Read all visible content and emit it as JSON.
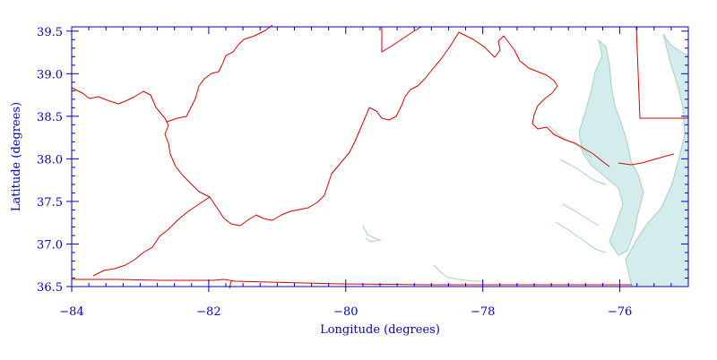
{
  "map": {
    "xlabel": "Longitude (degrees)",
    "ylabel": "Latitude (degrees)",
    "xlim": [
      -84,
      -75
    ],
    "ylim": [
      36.5,
      39.55
    ],
    "x_ticks": [
      {
        "value": -84,
        "label": "−84"
      },
      {
        "value": -82,
        "label": "−82"
      },
      {
        "value": -80,
        "label": "−80"
      },
      {
        "value": -78,
        "label": "−78"
      },
      {
        "value": -76,
        "label": "−76"
      }
    ],
    "y_ticks": [
      {
        "value": 36.5,
        "label": "36.5"
      },
      {
        "value": 37.0,
        "label": "37.0"
      },
      {
        "value": 37.5,
        "label": "37.5"
      },
      {
        "value": 38.0,
        "label": "38.0"
      },
      {
        "value": 38.5,
        "label": "38.5"
      },
      {
        "value": 39.0,
        "label": "39.0"
      },
      {
        "value": 39.5,
        "label": "39.5"
      }
    ],
    "colors": {
      "axis": "#0000cc",
      "state_boundary": "#dd0000",
      "water_fill": "#d3eded",
      "coastline": "#a9cfb8"
    }
  }
}
